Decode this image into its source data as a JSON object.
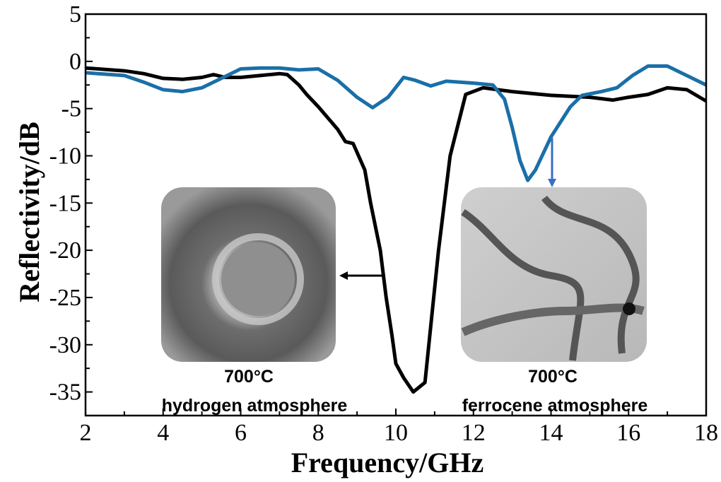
{
  "chart_data": {
    "type": "line",
    "title": "",
    "xlabel": "Frequency/GHz",
    "ylabel": "Reflectivity/dB",
    "xlim": [
      2,
      18
    ],
    "ylim": [
      -37.5,
      5
    ],
    "xticks": [
      2,
      4,
      6,
      8,
      10,
      12,
      14,
      16,
      18
    ],
    "yticks": [
      5,
      0,
      -5,
      -10,
      -15,
      -20,
      -25,
      -30,
      -35
    ],
    "grid": false,
    "series": [
      {
        "name": "700°C hydrogen atmosphere",
        "color": "#000000",
        "x": [
          2,
          3,
          3.5,
          4,
          4.5,
          5,
          5.3,
          5.6,
          6,
          6.5,
          7,
          7.2,
          7.5,
          7.7,
          8,
          8.25,
          8.5,
          8.7,
          8.9,
          9.2,
          9.35,
          9.6,
          9.75,
          9.9,
          10.0,
          10.2,
          10.45,
          10.75,
          11.1,
          11.4,
          11.8,
          12.25,
          13,
          14,
          15,
          15.6,
          16,
          16.5,
          17,
          17.5,
          18
        ],
        "y": [
          -0.7,
          -1.0,
          -1.3,
          -1.8,
          -1.9,
          -1.7,
          -1.4,
          -1.7,
          -1.7,
          -1.5,
          -1.3,
          -1.4,
          -2.5,
          -3.5,
          -4.8,
          -6.0,
          -7.2,
          -8.5,
          -8.7,
          -11.5,
          -15,
          -20,
          -25,
          -29,
          -32,
          -33.5,
          -35,
          -34,
          -20,
          -10,
          -3.5,
          -2.8,
          -3.2,
          -3.6,
          -3.8,
          -4.1,
          -3.8,
          -3.5,
          -2.8,
          -3.0,
          -4.2
        ]
      },
      {
        "name": "700°C ferrocene atmosphere",
        "color": "#1a6fa8",
        "x": [
          2,
          3,
          3.5,
          4,
          4.5,
          5,
          5.5,
          6,
          6.5,
          7,
          7.5,
          8,
          8.5,
          9,
          9.4,
          9.8,
          10.2,
          10.5,
          10.9,
          11.3,
          12,
          12.5,
          12.8,
          13.0,
          13.2,
          13.4,
          13.6,
          14,
          14.5,
          14.8,
          15.3,
          15.7,
          16.1,
          16.5,
          17,
          17.5,
          18
        ],
        "y": [
          -1.2,
          -1.5,
          -2.2,
          -3.0,
          -3.2,
          -2.8,
          -1.8,
          -0.8,
          -0.7,
          -0.7,
          -0.9,
          -0.8,
          -2.0,
          -3.8,
          -4.9,
          -3.8,
          -1.7,
          -2.0,
          -2.6,
          -2.1,
          -2.3,
          -2.5,
          -4.0,
          -7.0,
          -10.5,
          -12.6,
          -11.5,
          -8.0,
          -4.8,
          -3.6,
          -3.2,
          -2.8,
          -1.5,
          -0.5,
          -0.5,
          -1.5,
          -2.5
        ]
      }
    ],
    "annotations": {
      "left_inset": {
        "temperature": "700°C",
        "atmosphere": "hydrogen atmosphere"
      },
      "right_inset": {
        "temperature": "700°C",
        "atmosphere": "ferrocene atmosphere"
      }
    }
  }
}
